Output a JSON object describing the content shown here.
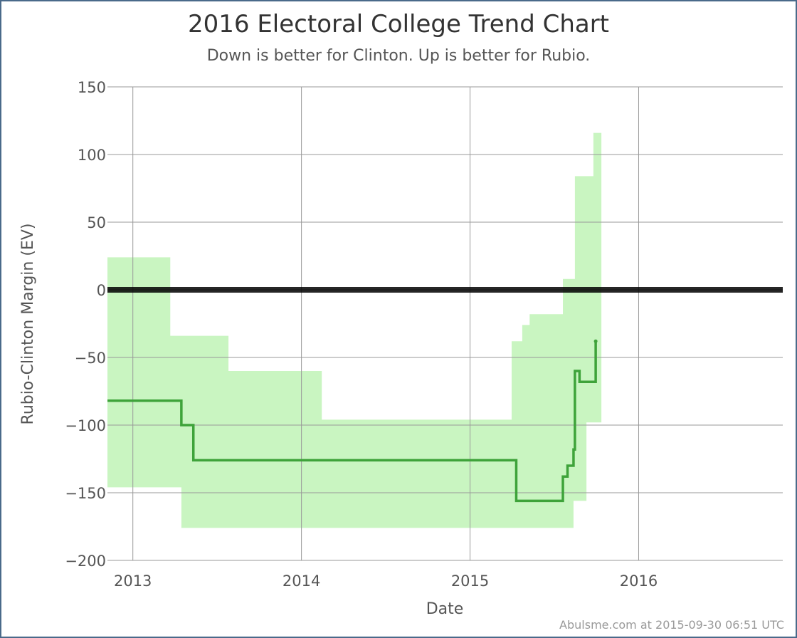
{
  "title": "2016 Electoral College Trend Chart",
  "subtitle": "Down is better for Clinton. Up is better for Rubio.",
  "credit": "Abulsme.com at 2015-09-30 06:51 UTC",
  "colors": {
    "band": "#c9f5c1",
    "line": "#3ea33a",
    "zero_line": "#000000",
    "grid": "#999999",
    "text": "#555555"
  },
  "chart_data": {
    "type": "line",
    "title": "2016 Electoral College Trend Chart",
    "subtitle": "Down is better for Clinton. Up is better for Rubio.",
    "xlabel": "Date",
    "ylabel": "Rubio-Clinton Margin (EV)",
    "xlim": [
      "2012-11-07",
      "2016-11-08"
    ],
    "ylim": [
      -200,
      150
    ],
    "x_ticks": [
      {
        "date": "2013-01-01",
        "label": "2013"
      },
      {
        "date": "2014-01-01",
        "label": "2014"
      },
      {
        "date": "2015-01-01",
        "label": "2015"
      },
      {
        "date": "2016-01-01",
        "label": "2016"
      }
    ],
    "y_ticks": [
      150,
      100,
      50,
      0,
      -50,
      -100,
      -150,
      -200
    ],
    "grid": true,
    "legend": "none",
    "series": [
      {
        "kind": "step-line",
        "points": [
          {
            "x": "2012-11-07",
            "y": -82
          },
          {
            "x": "2013-04-16",
            "y": -100
          },
          {
            "x": "2013-05-12",
            "y": -126
          },
          {
            "x": "2015-04-11",
            "y": -156
          },
          {
            "x": "2015-07-21",
            "y": -138
          },
          {
            "x": "2015-07-31",
            "y": -130
          },
          {
            "x": "2015-08-13",
            "y": -118
          },
          {
            "x": "2015-08-16",
            "y": -60
          },
          {
            "x": "2015-08-26",
            "y": -68
          },
          {
            "x": "2015-09-30",
            "y": -38
          }
        ]
      },
      {
        "kind": "range-band",
        "points": [
          {
            "x": "2012-11-07",
            "low": -146,
            "high": 24
          },
          {
            "x": "2013-03-23",
            "low": -146,
            "high": -34
          },
          {
            "x": "2013-04-16",
            "low": -176,
            "high": -34
          },
          {
            "x": "2013-07-27",
            "low": -176,
            "high": -60
          },
          {
            "x": "2014-02-14",
            "low": -176,
            "high": -96
          },
          {
            "x": "2015-04-01",
            "low": -176,
            "high": -38
          },
          {
            "x": "2015-04-24",
            "low": -176,
            "high": -26
          },
          {
            "x": "2015-05-10",
            "low": -176,
            "high": -18
          },
          {
            "x": "2015-07-21",
            "low": -176,
            "high": 8
          },
          {
            "x": "2015-08-13",
            "low": -156,
            "high": 8
          },
          {
            "x": "2015-08-16",
            "low": -156,
            "high": 84
          },
          {
            "x": "2015-09-10",
            "low": -98,
            "high": 84
          },
          {
            "x": "2015-09-25",
            "low": -98,
            "high": 116
          },
          {
            "x": "2015-09-30",
            "low": -98,
            "high": 116
          }
        ]
      }
    ]
  }
}
